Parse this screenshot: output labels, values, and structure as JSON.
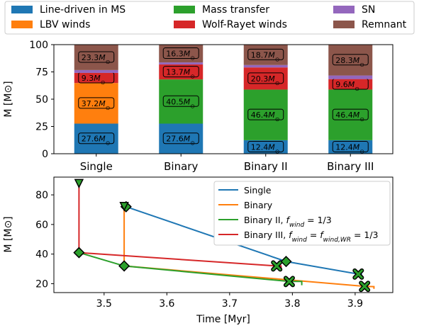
{
  "legend_top": {
    "items": [
      {
        "label": "Line-driven in MS",
        "color": "#1f77b4"
      },
      {
        "label": "Mass transfer",
        "color": "#2ca02c"
      },
      {
        "label": "SN",
        "color": "#9467bd"
      },
      {
        "label": "LBV winds",
        "color": "#ff7f0e"
      },
      {
        "label": "Wolf-Rayet winds",
        "color": "#d62728"
      },
      {
        "label": "Remnant",
        "color": "#8c564b"
      }
    ]
  },
  "legend_bottom": {
    "items": [
      {
        "label": "Single",
        "color": "#1f77b4"
      },
      {
        "label": "Binary",
        "color": "#ff7f0e"
      },
      {
        "label": "Binary II, f_wind = 1/3",
        "color": "#2ca02c"
      },
      {
        "label": "Binary III, f_wind = f_wind,WR = 1/3",
        "color": "#d62728"
      }
    ]
  },
  "chart_data": [
    {
      "type": "bar",
      "stacked": true,
      "categories": [
        "Single",
        "Binary",
        "Binary II",
        "Binary III"
      ],
      "ylabel": "M [M⊙]",
      "ylim": [
        0,
        100
      ],
      "yticks": [
        0,
        25,
        50,
        75,
        100
      ],
      "series": [
        {
          "name": "Line-driven in MS",
          "color": "#1f77b4",
          "values": [
            27.6,
            27.6,
            12.4,
            12.4
          ],
          "labels": [
            "27.6M⊙",
            "27.6M⊙",
            "12.4M⊙",
            "12.4M⊙"
          ]
        },
        {
          "name": "LBV winds",
          "color": "#ff7f0e",
          "values": [
            37.2,
            0,
            0,
            0
          ],
          "labels": [
            "37.2M⊙",
            "",
            "",
            ""
          ]
        },
        {
          "name": "Mass transfer",
          "color": "#2ca02c",
          "values": [
            0,
            40.5,
            46.4,
            46.4
          ],
          "labels": [
            "",
            "40.5M⊙",
            "46.4M⊙",
            "46.4M⊙"
          ]
        },
        {
          "name": "Wolf-Rayet winds",
          "color": "#d62728",
          "values": [
            9.3,
            13.7,
            20.3,
            9.6
          ],
          "labels": [
            "9.3M⊙",
            "13.7M⊙",
            "20.3M⊙",
            "9.6M⊙"
          ]
        },
        {
          "name": "SN",
          "color": "#9467bd",
          "values": [
            2.6,
            1.9,
            2.2,
            3.3
          ],
          "labels": [
            "",
            "",
            "",
            ""
          ]
        },
        {
          "name": "Remnant",
          "color": "#8c564b",
          "values": [
            23.3,
            16.3,
            18.7,
            28.3
          ],
          "labels": [
            "23.3M⊙",
            "16.3M⊙",
            "18.7M⊙",
            "28.3M⊙"
          ]
        }
      ]
    },
    {
      "type": "line",
      "xlabel": "Time [Myr]",
      "ylabel": "M [M⊙]",
      "xlim": [
        3.42,
        3.96
      ],
      "ylim": [
        14,
        92
      ],
      "xticks": [
        3.5,
        3.6,
        3.7,
        3.8,
        3.9
      ],
      "xtick_labels": [
        "3.5",
        "3.6",
        "3.7",
        "3.8",
        "3.9"
      ],
      "yticks": [
        20,
        40,
        60,
        80
      ],
      "series": [
        {
          "name": "Single",
          "color": "#1f77b4",
          "points": [
            [
              3.532,
              72.5
            ],
            [
              3.535,
              72.0
            ],
            [
              3.79,
              35.0
            ],
            [
              3.905,
              26.5
            ],
            [
              3.91,
              26.5
            ],
            [
              3.91,
              23.5
            ]
          ],
          "markers": [
            {
              "x": 3.535,
              "y": 72.0,
              "symbol": "diamond"
            },
            {
              "x": 3.79,
              "y": 35.0,
              "symbol": "diamond"
            },
            {
              "x": 3.905,
              "y": 26.5,
              "symbol": "x"
            }
          ]
        },
        {
          "name": "Binary",
          "color": "#ff7f0e",
          "points": [
            [
              3.532,
              72.5
            ],
            [
              3.532,
              32.0
            ],
            [
              3.915,
              18.2
            ],
            [
              3.93,
              18.0
            ],
            [
              3.93,
              16.5
            ]
          ],
          "markers": [
            {
              "x": 3.532,
              "y": 72.5,
              "symbol": "triangle-down"
            },
            {
              "x": 3.532,
              "y": 32.0,
              "symbol": "diamond"
            },
            {
              "x": 3.915,
              "y": 18.2,
              "symbol": "x"
            }
          ]
        },
        {
          "name": "Binary II, f_wind = 1/3",
          "color": "#2ca02c",
          "points": [
            [
              3.46,
              41.0
            ],
            [
              3.532,
              32.0
            ],
            [
              3.795,
              21.5
            ],
            [
              3.815,
              21.5
            ],
            [
              3.815,
              19.0
            ]
          ],
          "markers": [
            {
              "x": 3.46,
              "y": 41.0,
              "symbol": "diamond"
            },
            {
              "x": 3.795,
              "y": 21.5,
              "symbol": "x"
            }
          ]
        },
        {
          "name": "Binary III, f_wind = f_wind,WR = 1/3",
          "color": "#d62728",
          "points": [
            [
              3.46,
              88.0
            ],
            [
              3.46,
              41.0
            ],
            [
              3.775,
              32.0
            ],
            [
              3.782,
              32.0
            ],
            [
              3.782,
              29.5
            ]
          ],
          "markers": [
            {
              "x": 3.46,
              "y": 88.0,
              "symbol": "triangle-down"
            },
            {
              "x": 3.775,
              "y": 32.0,
              "symbol": "x"
            }
          ]
        }
      ]
    }
  ]
}
